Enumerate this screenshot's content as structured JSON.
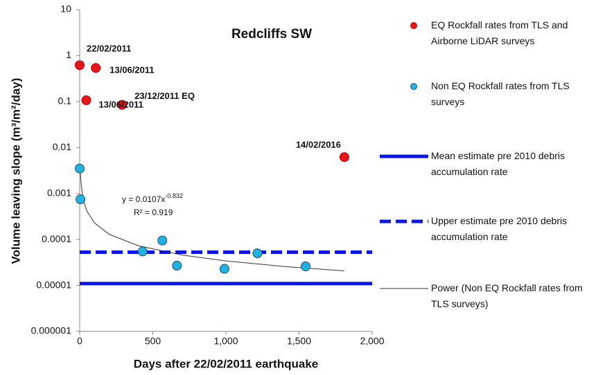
{
  "chart_data": {
    "type": "scatter",
    "title": "Redcliffs SW",
    "x_label": "Days after 22/02/2011 earthquake",
    "y_label": "Volume leaving slope (m³/m²/day)",
    "log_y": true,
    "xlim": [
      0,
      2000
    ],
    "xticks": [
      0,
      500,
      {
        "value": 1000,
        "label": "1,000"
      },
      {
        "value": 1500,
        "label": "1,500"
      },
      {
        "value": 2000,
        "label": "2,000"
      }
    ],
    "ylim": [
      1e-06,
      10
    ],
    "yticks": [
      1e-06,
      1e-05,
      0.0001,
      0.001,
      0.01,
      0.1,
      1,
      10
    ],
    "equation": "y = 0.0107x",
    "equation_exponent": "-0.832",
    "r_squared": "R² = 0.919",
    "series": [
      {
        "name": "EQ Rockfall rates from TLS and Airborne LiDAR surveys",
        "kind": "points",
        "color": "#e8161b",
        "x": [
          0,
          110,
          45,
          290,
          1810
        ],
        "values": [
          0.62,
          0.54,
          0.107,
          0.085,
          0.0062
        ],
        "point_labels": [
          "22/02/2011",
          "13/06/2011",
          "13/06/2011",
          "23/12/2011  EQ",
          "14/02/2016"
        ]
      },
      {
        "name": "Non EQ Rockfall rates from TLS surveys",
        "kind": "points",
        "color": "#1fb2e3",
        "x": [
          0,
          5,
          430,
          565,
          665,
          990,
          1215,
          1545
        ],
        "values": [
          0.0035,
          0.00075,
          5.5e-05,
          9.5e-05,
          2.7e-05,
          2.3e-05,
          5e-05,
          2.6e-05
        ]
      },
      {
        "name": "Mean estimate pre 2010 debris accumulation rate",
        "kind": "line",
        "color": "#0a14e6",
        "width": 5,
        "x": [
          0,
          2000
        ],
        "values": [
          1.1e-05,
          1.1e-05
        ]
      },
      {
        "name": "Upper estimate pre 2010 debris accumulation rate",
        "kind": "dashed",
        "color": "#0a14e6",
        "width": 5,
        "x": [
          0,
          2000
        ],
        "values": [
          5.3e-05,
          5.3e-05
        ]
      },
      {
        "name": "Power (Non EQ Rockfall rates from TLS surveys)",
        "kind": "line",
        "color": "#333333",
        "width": 1,
        "x": [
          5,
          10,
          20,
          30,
          50,
          100,
          200,
          400,
          700,
          1000,
          1400,
          1810
        ],
        "values": [
          0.0028,
          0.001575,
          0.000885,
          0.000631,
          0.000413,
          0.000232,
          0.0001303,
          7.32e-05,
          4.59e-05,
          3.42e-05,
          2.58e-05,
          2.08e-05
        ]
      }
    ]
  }
}
